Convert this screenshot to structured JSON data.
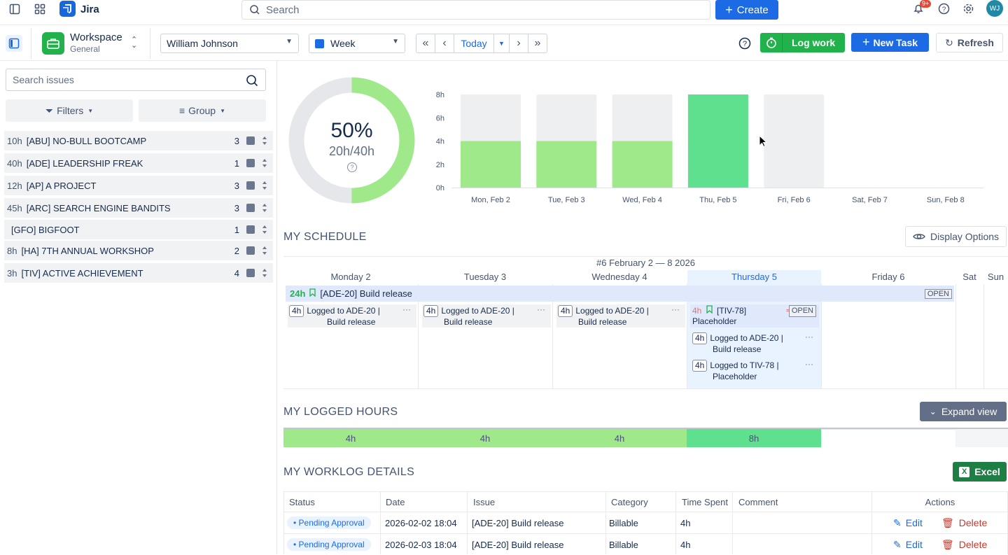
{
  "topbar": {
    "app_name": "Jira",
    "search_placeholder": "Search",
    "create_label": "Create",
    "notif_badge": "9+",
    "avatar_initials": "WJ"
  },
  "toolbar": {
    "workspace_title": "Workspace",
    "workspace_sub": "General",
    "user_select": "William Johnson",
    "period_select": "Week",
    "today_label": "Today",
    "log_work_label": "Log work",
    "new_task_label": "New Task",
    "refresh_label": "Refresh"
  },
  "sidebar": {
    "search_placeholder": "Search issues",
    "filters_label": "Filters",
    "group_label": "Group",
    "projects": [
      {
        "hours": "10h",
        "name": "[ABU] NO-BULL BOOTCAMP",
        "count": "3"
      },
      {
        "hours": "40h",
        "name": "[ADE] LEADERSHIP FREAK",
        "count": "1"
      },
      {
        "hours": "12h",
        "name": "[AP] A PROJECT",
        "count": "3"
      },
      {
        "hours": "45h",
        "name": "[ARC] SEARCH ENGINE BANDITS",
        "count": "3"
      },
      {
        "hours": "",
        "name": "[GFO] BIGFOOT",
        "count": "1"
      },
      {
        "hours": "8h",
        "name": "[HA] 7TH ANNUAL WORKSHOP",
        "count": "2"
      },
      {
        "hours": "3h",
        "name": "[TIV] ACTIVE ACHIEVEMENT",
        "count": "4"
      }
    ]
  },
  "summary": {
    "percent": "50%",
    "ratio": "20h/40h",
    "progress_fraction": 0.5
  },
  "chart_data": {
    "type": "bar",
    "categories": [
      "Mon, Feb 2",
      "Tue, Feb 3",
      "Wed, Feb 4",
      "Thu, Feb 5",
      "Fri, Feb 6",
      "Sat, Feb 7",
      "Sun, Feb 8"
    ],
    "series": [
      {
        "values": [
          4,
          4,
          4,
          8,
          0,
          0,
          0
        ]
      }
    ],
    "capacity": [
      8,
      8,
      8,
      8,
      8,
      0,
      0
    ],
    "yticks": [
      "8h",
      "6h",
      "4h",
      "2h",
      "0h"
    ],
    "ylim": [
      0,
      8
    ],
    "colors": {
      "logged": "#a0e98b",
      "full": "#5ee08e",
      "capacity": "#eeeff1"
    }
  },
  "schedule": {
    "title": "MY SCHEDULE",
    "display_options": "Display Options",
    "week_label": "#6 February 2 — 8 2026",
    "days": [
      "Monday 2",
      "Tuesday 3",
      "Wednesday 4",
      "Thursday 5",
      "Friday 6",
      "Sat",
      "Sun"
    ],
    "task_bar": {
      "hours": "24h",
      "label": "[ADE-20] Build release",
      "status": "OPEN"
    },
    "cards": {
      "logged_ade_1": "Logged to ADE-20 |",
      "logged_ade_2": "Build release",
      "tiv_hours": "4h",
      "tiv_title": "[TIV-78]",
      "tiv_sub": "Placeholder",
      "tiv_status": "OPEN",
      "logged_tiv_1": "Logged to TIV-78 |",
      "logged_tiv_2": "Placeholder",
      "tag": "4h"
    }
  },
  "logged_hours": {
    "title": "MY LOGGED HOURS",
    "expand_label": "Expand view",
    "cells": [
      "4h",
      "4h",
      "4h",
      "8h"
    ]
  },
  "worklog": {
    "title": "MY WORKLOG DETAILS",
    "excel_label": "Excel",
    "headers": [
      "Status",
      "Date",
      "Issue",
      "Category",
      "Time Spent",
      "Comment",
      "Actions"
    ],
    "rows": [
      {
        "status": "• Pending Approval",
        "date": "2026-02-02 18:04",
        "issue": "[ADE-20] Build release",
        "category": "Billable",
        "time": "4h",
        "comment": ""
      },
      {
        "status": "• Pending Approval",
        "date": "2026-02-03 18:04",
        "issue": "[ADE-20] Build release",
        "category": "Billable",
        "time": "4h",
        "comment": ""
      }
    ],
    "edit_label": "Edit",
    "delete_label": "Delete"
  }
}
